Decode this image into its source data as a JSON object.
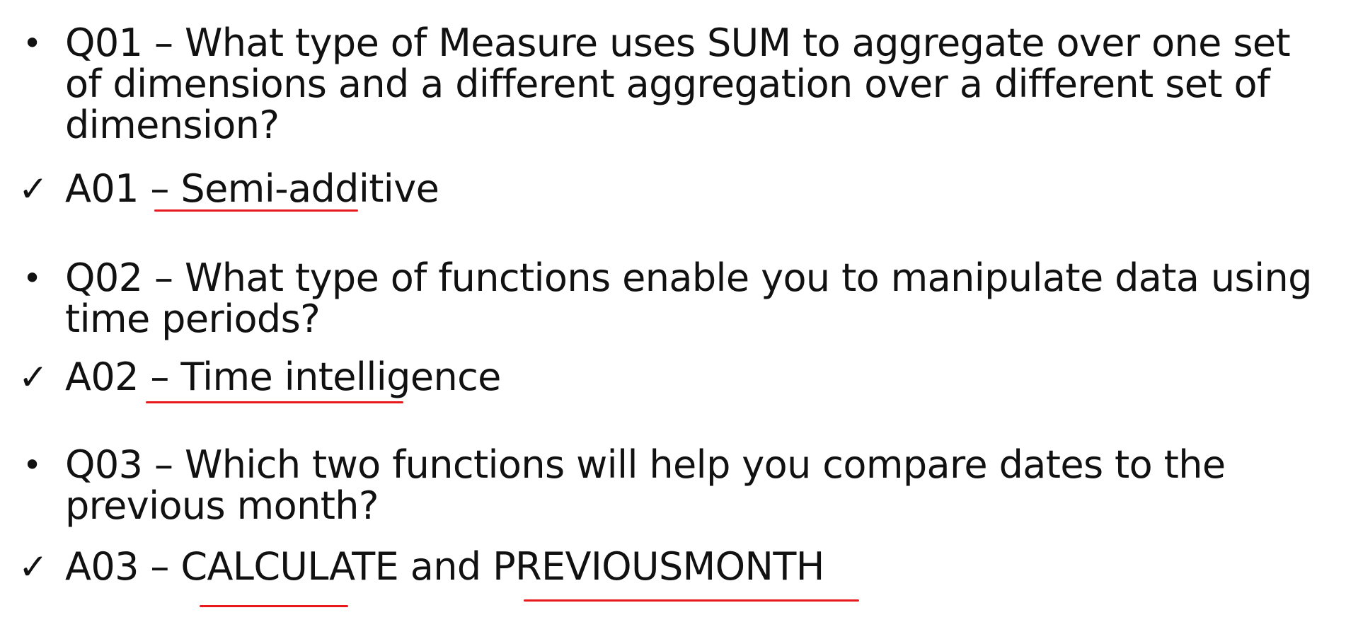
{
  "items": [
    {
      "kind": "question",
      "marker": "•",
      "text": "Q01 – What type of Measure uses SUM to aggregate over one set of dimensions and a different aggregation over a different set of dimension?"
    },
    {
      "kind": "answer",
      "marker": "✓",
      "prefix": "A01 – ",
      "answer": "Semi-additive"
    },
    {
      "kind": "question",
      "marker": "•",
      "text": "Q02 – What type of functions enable you to manipulate data using time periods?"
    },
    {
      "kind": "answer",
      "marker": "✓",
      "prefix": "A02 – ",
      "answer": "Time intelligence"
    },
    {
      "kind": "question",
      "marker": "•",
      "text": "Q03 – Which two functions will help you compare dates to the previous month?"
    },
    {
      "kind": "answer",
      "marker": "✓",
      "prefix": "A03 – ",
      "answer_part1": "CALCULATE",
      "joiner": " and ",
      "answer_part2": "PREVIOUSMONTH"
    }
  ],
  "colors": {
    "text": "#111111",
    "underline": "#e8191c",
    "background": "#ffffff"
  }
}
